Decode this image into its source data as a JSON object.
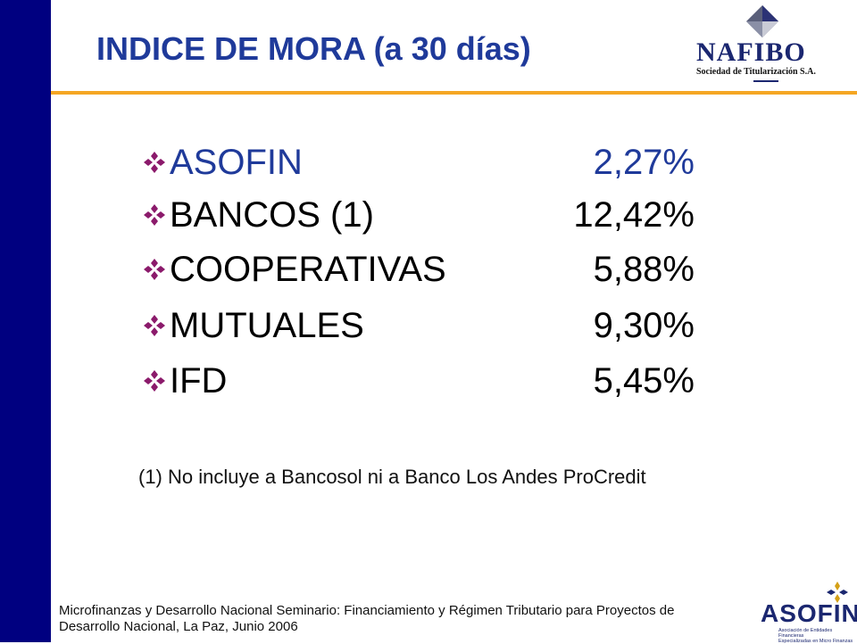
{
  "header": {
    "title": "INDICE DE MORA  (a 30 días)"
  },
  "logo": {
    "name": "NAFIBO",
    "subtitle": "Sociedad de Titularización S.A."
  },
  "items": [
    {
      "label": "ASOFIN",
      "value": "2,27%",
      "color": "#1f3a9a"
    },
    {
      "label": "BANCOS (1)",
      "value": "12,42%",
      "color": "#111111"
    },
    {
      "label": "COOPERATIVAS",
      "value": "5,88%",
      "color": "#111111"
    },
    {
      "label": "MUTUALES",
      "value": "9,30%",
      "color": "#111111"
    },
    {
      "label": "IFD",
      "value": "5,45%",
      "color": "#111111"
    }
  ],
  "note": "(1) No incluye a Bancosol ni a Banco Los Andes ProCredit",
  "footer": {
    "line1": "Microfinanzas y Desarrollo Nacional Seminario: Financiamiento y Régimen Tributario para Proyectos de",
    "line2": "Desarrollo Nacional, La Paz, Junio 2006"
  },
  "asofin_logo": {
    "name": "ASOFIN",
    "line1": "Asociación de Entidades Financieras",
    "line2": "Especializadas en Micro Finanzas"
  },
  "colors": {
    "sidebar": "#000080",
    "accent_rule": "#f5a623",
    "title": "#1f3a9a",
    "bullet": "#8b1a6b"
  }
}
